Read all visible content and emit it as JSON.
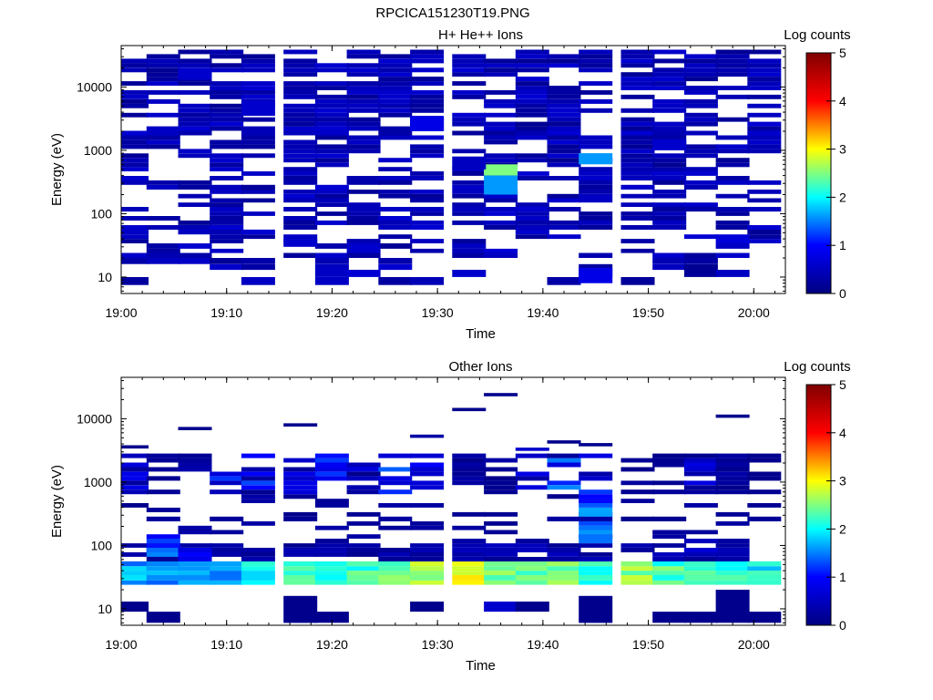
{
  "figure": {
    "title": "RPCICA151230T19.PNG"
  },
  "colormap": [
    "#000080",
    "#0000ff",
    "#00ffff",
    "#ffff00",
    "#ff0000",
    "#800000"
  ],
  "chart_data": [
    {
      "type": "heatmap",
      "title": "H+ He++ Ions",
      "xlabel": "Time",
      "ylabel": "Energy (eV)",
      "colorbar_label": "Log counts",
      "yscale": "log",
      "xlim": [
        "19:00",
        "20:03"
      ],
      "ylim": [
        5.5,
        45000
      ],
      "x_ticks": [
        "19:00",
        "19:10",
        "19:20",
        "19:30",
        "19:40",
        "19:50",
        "20:00"
      ],
      "y_ticks": [
        {
          "value": 10,
          "label": "10"
        },
        {
          "value": 100,
          "label": "100"
        },
        {
          "value": 1000,
          "label": "1000"
        },
        {
          "value": 10000,
          "label": "10000"
        }
      ],
      "cbar_range": [
        0,
        5
      ],
      "cbar_ticks": [
        "0",
        "1",
        "2",
        "3",
        "4",
        "5"
      ],
      "time_bins": [
        "19:01",
        "19:04",
        "19:07",
        "19:10",
        "19:13",
        "19:17",
        "19:20",
        "19:23",
        "19:26",
        "19:29",
        "19:33",
        "19:36",
        "19:39",
        "19:42",
        "19:45",
        "19:49",
        "19:52",
        "19:55",
        "19:58",
        "20:01"
      ],
      "bin_width_min": 3.2,
      "energy_bins": [
        7.5,
        10,
        13,
        16,
        20,
        24,
        28,
        34,
        40,
        47,
        56,
        66,
        78,
        92,
        108,
        128,
        150,
        175,
        205,
        240,
        285,
        335,
        395,
        465,
        545,
        645,
        760,
        895,
        1050,
        1240,
        1460,
        1720,
        2030,
        2390,
        2820,
        3320,
        3910,
        4610,
        5430,
        6400,
        7540,
        8880,
        10460,
        12320,
        14520,
        17100,
        20150,
        23740,
        27970,
        32950,
        38820
      ],
      "background_level": 0.15,
      "highlights": [
        {
          "time": "19:36",
          "energy_range": [
            400,
            600
          ],
          "value": 2.5
        },
        {
          "time": "19:36",
          "energy_range": [
            200,
            400
          ],
          "value": 1.6
        },
        {
          "time": "19:45",
          "energy_range": [
            600,
            900
          ],
          "value": 1.6
        },
        {
          "time": "19:45",
          "energy_range": [
            8,
            14
          ],
          "value": 0.8
        },
        {
          "time": "19:29",
          "energy_range": [
            2000,
            3500
          ],
          "value": 0.8
        },
        {
          "time": "19:13",
          "energy_range": [
            3500,
            6000
          ],
          "value": 0.6
        },
        {
          "time": "19:07",
          "energy_range": [
            13000,
            20000
          ],
          "value": 0.6
        },
        {
          "time": "19:52",
          "energy_range": [
            1000,
            1500
          ],
          "value": 0.6
        },
        {
          "time": "19:58",
          "energy_range": [
            34,
            47
          ],
          "value": 0.7
        },
        {
          "time": "19:23",
          "energy_range": [
            24,
            34
          ],
          "value": 0.6
        },
        {
          "time": "19:17",
          "energy_range": [
            30,
            40
          ],
          "value": 0.6
        },
        {
          "time": "19:33",
          "energy_range": [
            500,
            800
          ],
          "value": 0.5
        }
      ]
    },
    {
      "type": "heatmap",
      "title": "Other Ions",
      "xlabel": "Time",
      "ylabel": "Energy (eV)",
      "colorbar_label": "Log counts",
      "yscale": "log",
      "xlim": [
        "19:00",
        "20:03"
      ],
      "ylim": [
        5.5,
        45000
      ],
      "x_ticks": [
        "19:00",
        "19:10",
        "19:20",
        "19:30",
        "19:40",
        "19:50",
        "20:00"
      ],
      "y_ticks": [
        {
          "value": 10,
          "label": "10"
        },
        {
          "value": 100,
          "label": "100"
        },
        {
          "value": 1000,
          "label": "1000"
        },
        {
          "value": 10000,
          "label": "10000"
        }
      ],
      "cbar_range": [
        0,
        5
      ],
      "cbar_ticks": [
        "0",
        "1",
        "2",
        "3",
        "4",
        "5"
      ],
      "time_bins": [
        "19:01",
        "19:04",
        "19:07",
        "19:10",
        "19:13",
        "19:17",
        "19:20",
        "19:23",
        "19:26",
        "19:29",
        "19:33",
        "19:36",
        "19:39",
        "19:42",
        "19:45",
        "19:49",
        "19:52",
        "19:55",
        "19:58",
        "20:01"
      ],
      "bin_width_min": 3.2,
      "energy_bins": [
        7.5,
        10,
        13,
        16,
        20,
        24,
        28,
        34,
        40,
        47,
        56,
        66,
        78,
        92,
        108,
        128,
        150,
        175,
        205,
        240,
        285,
        335,
        395,
        465,
        545,
        645,
        760,
        895,
        1050,
        1240,
        1460,
        1720,
        2030,
        2390,
        2820,
        3320,
        3910,
        4610,
        5430,
        6400,
        7540,
        8880,
        10460,
        12320,
        14520,
        17100,
        20150,
        23740,
        27970,
        32950,
        38820
      ],
      "main_band": {
        "energy_range": [
          24,
          60
        ],
        "levels": [
          1.6,
          1.5,
          1.5,
          1.7,
          2.0,
          2.2,
          2.2,
          2.2,
          2.3,
          2.7,
          2.9,
          2.4,
          2.3,
          2.4,
          2.2,
          2.5,
          2.3,
          2.2,
          2.2,
          2.0
        ]
      },
      "upper_band": {
        "energy_range": [
          700,
          2000
        ],
        "levels": [
          0.8,
          0.2,
          0.5,
          1.1,
          1.3,
          1.0,
          1.2,
          0.7,
          1.3,
          0.9,
          0.3,
          0.4,
          0.9,
          1.5,
          1.0,
          0.4,
          0.2,
          0.9,
          0.3,
          0.2
        ]
      },
      "high_lines": [
        {
          "time": "19:01",
          "energy": 3600,
          "value": 0.1
        },
        {
          "time": "19:07",
          "energy": 7000,
          "value": 0.1
        },
        {
          "time": "19:17",
          "energy": 8000,
          "value": 0.1
        },
        {
          "time": "19:29",
          "energy": 5300,
          "value": 0.3
        },
        {
          "time": "19:33",
          "energy": 14000,
          "value": 0.1
        },
        {
          "time": "19:36",
          "energy": 24000,
          "value": 0.1
        },
        {
          "time": "19:39",
          "energy": 3300,
          "value": 0.6
        },
        {
          "time": "19:42",
          "energy": 4300,
          "value": 0.1
        },
        {
          "time": "19:45",
          "energy": 3900,
          "value": 0.1
        },
        {
          "time": "19:58",
          "energy": 11000,
          "value": 0.1
        }
      ],
      "low_blocks": [
        {
          "time": "19:01",
          "energy_range": [
            9,
            13
          ],
          "value": 0.1
        },
        {
          "time": "19:04",
          "energy_range": [
            6,
            9
          ],
          "value": 0.1
        },
        {
          "time": "19:17",
          "energy_range": [
            6,
            16
          ],
          "value": 0.1
        },
        {
          "time": "19:20",
          "energy_range": [
            6,
            9
          ],
          "value": 0.1
        },
        {
          "time": "19:29",
          "energy_range": [
            9,
            13
          ],
          "value": 0.1
        },
        {
          "time": "19:36",
          "energy_range": [
            9,
            13
          ],
          "value": 0.6
        },
        {
          "time": "19:39",
          "energy_range": [
            9,
            13
          ],
          "value": 0.1
        },
        {
          "time": "19:45",
          "energy_range": [
            6,
            16
          ],
          "value": 0.1
        },
        {
          "time": "19:52",
          "energy_range": [
            6,
            9
          ],
          "value": 0.1
        },
        {
          "time": "19:55",
          "energy_range": [
            6,
            9
          ],
          "value": 0.1
        },
        {
          "time": "19:58",
          "energy_range": [
            6,
            20
          ],
          "value": 0.1
        },
        {
          "time": "20:01",
          "energy_range": [
            6,
            9
          ],
          "value": 0.1
        }
      ],
      "spikes": [
        {
          "time": "19:45",
          "energy_range": [
            100,
            800
          ],
          "value": 1.6
        },
        {
          "time": "19:04",
          "energy_range": [
            70,
            150
          ],
          "value": 1.5
        },
        {
          "time": "19:07",
          "energy_range": [
            60,
            110
          ],
          "value": 1.2
        },
        {
          "time": "19:55",
          "energy_range": [
            80,
            130
          ],
          "value": 0.8
        }
      ]
    }
  ]
}
